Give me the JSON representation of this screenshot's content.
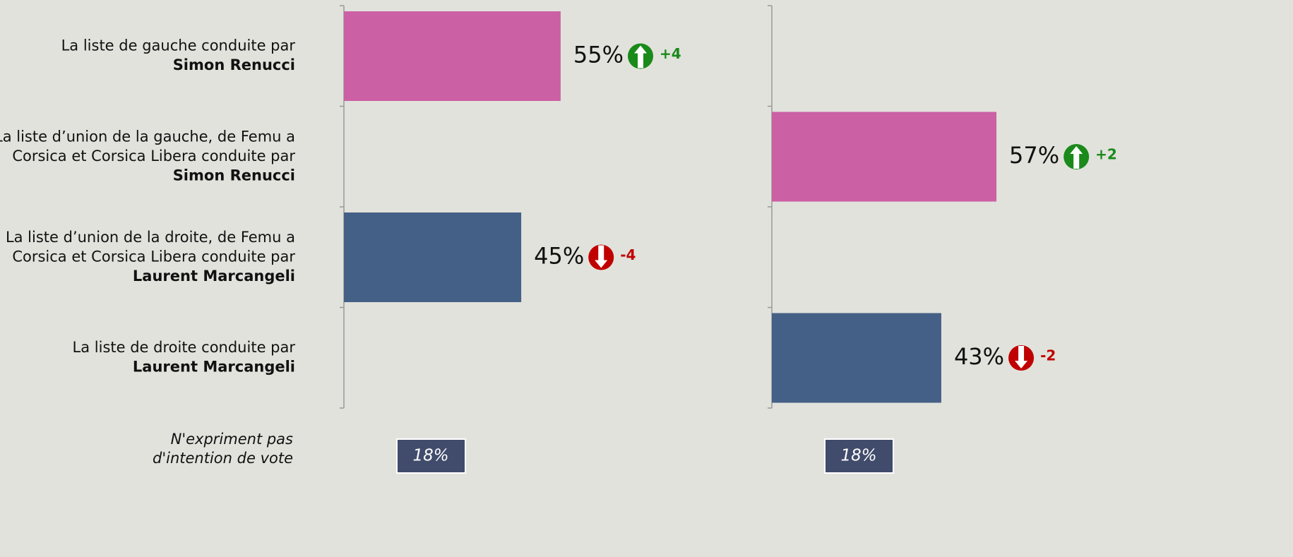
{
  "chart_data": {
    "type": "bar",
    "orientation": "horizontal",
    "categories": [
      {
        "lines": [
          "La liste de gauche conduite par"
        ],
        "name": "Simon Renucci"
      },
      {
        "lines": [
          "La liste d’union de la gauche, de Femu a",
          "Corsica et Corsica Libera conduite par"
        ],
        "name": "Simon Renucci"
      },
      {
        "lines": [
          "La liste d’union de la droite, de Femu a",
          "Corsica et Corsica Libera conduite par"
        ],
        "name": "Laurent Marcangeli"
      },
      {
        "lines": [
          "La liste de droite conduite par"
        ],
        "name": "Laurent Marcangeli"
      }
    ],
    "colors": [
      "#cc60a4",
      "#cc60a4",
      "#456086",
      "#456086"
    ],
    "up_color": "#1a8a1a",
    "down_color": "#c00000",
    "xlim": [
      0,
      100
    ],
    "panels": [
      {
        "values": [
          55,
          null,
          45,
          null
        ],
        "value_labels": [
          "55%",
          null,
          "45%",
          null
        ],
        "changes": [
          4,
          null,
          -4,
          null
        ],
        "change_labels": [
          "+4",
          null,
          "-4",
          null
        ],
        "abstention": 18,
        "abstention_label": "18%"
      },
      {
        "values": [
          null,
          57,
          null,
          43
        ],
        "value_labels": [
          null,
          "57%",
          null,
          "43%"
        ],
        "changes": [
          null,
          2,
          null,
          -2
        ],
        "change_labels": [
          null,
          "+2",
          null,
          "-2"
        ],
        "abstention": 18,
        "abstention_label": "18%"
      }
    ],
    "abstention_lines": [
      "N'expriment pas",
      "d'intention de vote"
    ]
  }
}
